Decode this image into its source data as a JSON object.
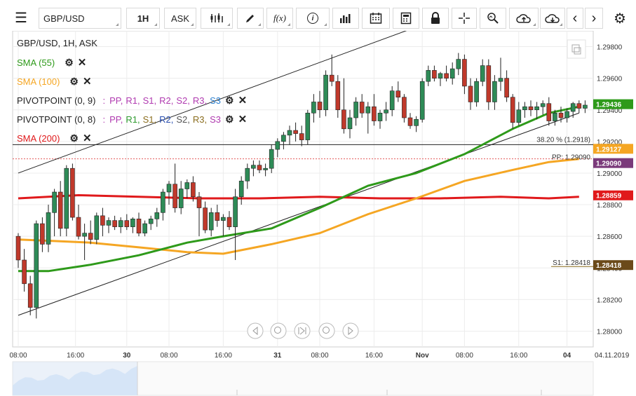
{
  "toolbar": {
    "symbol": "GBP/USD",
    "timeframe": "1H",
    "price_type": "ASK",
    "icons": [
      "menu-icon",
      "candles-icon",
      "draw-icon",
      "fx-icon",
      "info-icon",
      "bars-icon",
      "calendar-icon",
      "calculator-icon",
      "lock-icon",
      "crosshair-icon",
      "zoom-icon",
      "upload-icon",
      "download-icon",
      "prev-icon",
      "next-icon",
      "settings-icon"
    ],
    "fx_label": "f(x)"
  },
  "legend": {
    "title": "GBP/USD, 1H, ASK",
    "sma55": "SMA (55)",
    "sma100": "SMA (100)",
    "pivot1_label": "PIVOTPOINT (0, 9)",
    "pivot2_label": "PIVOTPOINT (0, 8)",
    "sma200": "SMA (200)",
    "pivot_sep": ":",
    "pivot_parts": [
      "PP,",
      "R1,",
      "S1,",
      "R2,",
      "S2,",
      "R3,",
      "S3"
    ],
    "pivot1_colors": [
      "#b03ab0",
      "#b03ab0",
      "#b03ab0",
      "#b03ab0",
      "#b03ab0",
      "#b03ab0",
      "#2a7fd0"
    ],
    "pivot2_colors": [
      "#b03ab0",
      "#2e9a2e",
      "#8a6d1e",
      "#2a4fb0",
      "#555555",
      "#8a6d1e",
      "#b03ab0"
    ]
  },
  "colors": {
    "up": "#2e8b57",
    "down": "#c0392b",
    "sma55": "#2e9a1a",
    "sma100": "#f5a623",
    "sma200": "#e0191b"
  },
  "chart_data": {
    "type": "candlestick",
    "ylim": [
      1.279,
      1.299
    ],
    "y_ticks": [
      "1.29800",
      "1.29600",
      "1.29400",
      "1.29200",
      "1.29000",
      "1.28800",
      "1.28600",
      "1.28400",
      "1.28200",
      "1.28000"
    ],
    "x_ticks": [
      "08:00",
      "16:00",
      "30",
      "08:00",
      "16:00",
      "31",
      "08:00",
      "16:00",
      "Nov",
      "08:00",
      "16:00",
      "04"
    ],
    "x_tick_index": [
      0,
      9.5,
      18,
      25,
      34,
      43,
      50,
      59,
      67,
      74,
      83,
      91
    ],
    "date_label": "04.11.2019",
    "candles": [
      [
        1.286,
        1.2862,
        1.284,
        1.2845
      ],
      [
        1.2845,
        1.2852,
        1.2825,
        1.283
      ],
      [
        1.283,
        1.2835,
        1.281,
        1.2815
      ],
      [
        1.2815,
        1.287,
        1.2808,
        1.2868
      ],
      [
        1.2868,
        1.2872,
        1.285,
        1.2855
      ],
      [
        1.2855,
        1.288,
        1.285,
        1.2875
      ],
      [
        1.2875,
        1.289,
        1.286,
        1.2888
      ],
      [
        1.2888,
        1.2895,
        1.286,
        1.2865
      ],
      [
        1.2865,
        1.2905,
        1.286,
        1.2903
      ],
      [
        1.2903,
        1.2906,
        1.287,
        1.2872
      ],
      [
        1.2872,
        1.288,
        1.2858,
        1.286
      ],
      [
        1.286,
        1.2868,
        1.2845,
        1.2862
      ],
      [
        1.2862,
        1.287,
        1.2855,
        1.2858
      ],
      [
        1.2858,
        1.2875,
        1.2855,
        1.2873
      ],
      [
        1.2873,
        1.2878,
        1.286,
        1.2867
      ],
      [
        1.2867,
        1.2872,
        1.2862,
        1.287
      ],
      [
        1.287,
        1.2873,
        1.2864,
        1.2866
      ],
      [
        1.2866,
        1.2872,
        1.2862,
        1.287
      ],
      [
        1.287,
        1.2874,
        1.2864,
        1.2866
      ],
      [
        1.2866,
        1.2872,
        1.2862,
        1.2871
      ],
      [
        1.2871,
        1.2875,
        1.286,
        1.2862
      ],
      [
        1.2862,
        1.287,
        1.286,
        1.2868
      ],
      [
        1.2868,
        1.2873,
        1.2864,
        1.2871
      ],
      [
        1.2871,
        1.2878,
        1.2866,
        1.2875
      ],
      [
        1.2875,
        1.289,
        1.287,
        1.2888
      ],
      [
        1.2888,
        1.2895,
        1.288,
        1.2893
      ],
      [
        1.2893,
        1.2906,
        1.2875,
        1.2878
      ],
      [
        1.2878,
        1.2895,
        1.2874,
        1.289
      ],
      [
        1.289,
        1.2896,
        1.2884,
        1.2894
      ],
      [
        1.2894,
        1.2898,
        1.2882,
        1.2885
      ],
      [
        1.2885,
        1.2888,
        1.286,
        1.2878
      ],
      [
        1.2878,
        1.2882,
        1.2862,
        1.2864
      ],
      [
        1.2864,
        1.2878,
        1.286,
        1.2875
      ],
      [
        1.2875,
        1.288,
        1.2866,
        1.287
      ],
      [
        1.287,
        1.2874,
        1.286,
        1.2872
      ],
      [
        1.2872,
        1.2876,
        1.2864,
        1.2866
      ],
      [
        1.2866,
        1.289,
        1.2845,
        1.2885
      ],
      [
        1.2885,
        1.2898,
        1.288,
        1.2895
      ],
      [
        1.2895,
        1.2906,
        1.289,
        1.2903
      ],
      [
        1.2903,
        1.2908,
        1.2898,
        1.2905
      ],
      [
        1.2905,
        1.2908,
        1.29,
        1.2902
      ],
      [
        1.2902,
        1.2906,
        1.2898,
        1.2903
      ],
      [
        1.2903,
        1.2918,
        1.29,
        1.2915
      ],
      [
        1.2915,
        1.2922,
        1.291,
        1.292
      ],
      [
        1.292,
        1.2926,
        1.2915,
        1.2924
      ],
      [
        1.2924,
        1.293,
        1.2918,
        1.2927
      ],
      [
        1.2927,
        1.2932,
        1.292,
        1.2925
      ],
      [
        1.2925,
        1.293,
        1.2917,
        1.2921
      ],
      [
        1.2921,
        1.294,
        1.2918,
        1.2938
      ],
      [
        1.2938,
        1.295,
        1.2932,
        1.2945
      ],
      [
        1.2945,
        1.2952,
        1.2935,
        1.294
      ],
      [
        1.294,
        1.2965,
        1.2936,
        1.2962
      ],
      [
        1.2962,
        1.2975,
        1.2955,
        1.2958
      ],
      [
        1.2958,
        1.2962,
        1.2935,
        1.294
      ],
      [
        1.294,
        1.296,
        1.2925,
        1.2928
      ],
      [
        1.2928,
        1.294,
        1.2922,
        1.2935
      ],
      [
        1.2935,
        1.2948,
        1.293,
        1.2945
      ],
      [
        1.2945,
        1.295,
        1.2935,
        1.2938
      ],
      [
        1.2938,
        1.2945,
        1.2925,
        1.2942
      ],
      [
        1.2942,
        1.295,
        1.293,
        1.2933
      ],
      [
        1.2933,
        1.294,
        1.2928,
        1.2938
      ],
      [
        1.2938,
        1.2945,
        1.2933,
        1.294
      ],
      [
        1.294,
        1.2955,
        1.2936,
        1.2952
      ],
      [
        1.2952,
        1.2958,
        1.2945,
        1.2948
      ],
      [
        1.2948,
        1.295,
        1.2932,
        1.2935
      ],
      [
        1.2935,
        1.2938,
        1.2928,
        1.293
      ],
      [
        1.293,
        1.2936,
        1.2926,
        1.2934
      ],
      [
        1.2934,
        1.296,
        1.2932,
        1.2958
      ],
      [
        1.2958,
        1.2968,
        1.2955,
        1.2965
      ],
      [
        1.2965,
        1.2968,
        1.2958,
        1.296
      ],
      [
        1.296,
        1.2964,
        1.2955,
        1.2963
      ],
      [
        1.2963,
        1.2968,
        1.2958,
        1.296
      ],
      [
        1.296,
        1.297,
        1.2956,
        1.2966
      ],
      [
        1.2966,
        1.2976,
        1.2962,
        1.2972
      ],
      [
        1.2972,
        1.2975,
        1.295,
        1.2955
      ],
      [
        1.2955,
        1.296,
        1.294,
        1.2945
      ],
      [
        1.2945,
        1.296,
        1.2942,
        1.2958
      ],
      [
        1.2958,
        1.2972,
        1.2955,
        1.2968
      ],
      [
        1.2968,
        1.2972,
        1.294,
        1.2945
      ],
      [
        1.2945,
        1.2962,
        1.294,
        1.2958
      ],
      [
        1.2958,
        1.2973,
        1.2952,
        1.296
      ],
      [
        1.296,
        1.2965,
        1.2945,
        1.2948
      ],
      [
        1.2948,
        1.295,
        1.2928,
        1.2932
      ],
      [
        1.2932,
        1.2945,
        1.293,
        1.294
      ],
      [
        1.294,
        1.2945,
        1.2935,
        1.2942
      ],
      [
        1.2942,
        1.2946,
        1.2936,
        1.294
      ],
      [
        1.294,
        1.2945,
        1.2934,
        1.2942
      ],
      [
        1.2942,
        1.2946,
        1.2937,
        1.2944
      ],
      [
        1.2944,
        1.2948,
        1.293,
        1.2933
      ],
      [
        1.2933,
        1.294,
        1.293,
        1.2938
      ],
      [
        1.2938,
        1.2942,
        1.2932,
        1.2935
      ],
      [
        1.2935,
        1.2941,
        1.2932,
        1.2939
      ],
      [
        1.2939,
        1.2945,
        1.2935,
        1.2944
      ],
      [
        1.2944,
        1.2946,
        1.2938,
        1.2941
      ],
      [
        1.2941,
        1.2946,
        1.2938,
        1.2943
      ]
    ],
    "sma55": [
      [
        0,
        1.2838
      ],
      [
        5,
        1.2838
      ],
      [
        12,
        1.2842
      ],
      [
        20,
        1.2848
      ],
      [
        28,
        1.2856
      ],
      [
        34,
        1.286
      ],
      [
        42,
        1.2865
      ],
      [
        50,
        1.2878
      ],
      [
        58,
        1.2892
      ],
      [
        66,
        1.29
      ],
      [
        74,
        1.2912
      ],
      [
        82,
        1.2928
      ],
      [
        88,
        1.2938
      ],
      [
        93,
        1.2942
      ]
    ],
    "sma100": [
      [
        0,
        1.2858
      ],
      [
        6,
        1.2857
      ],
      [
        12,
        1.2856
      ],
      [
        20,
        1.2853
      ],
      [
        28,
        1.285
      ],
      [
        34,
        1.2849
      ],
      [
        42,
        1.2855
      ],
      [
        50,
        1.2862
      ],
      [
        58,
        1.2874
      ],
      [
        66,
        1.2884
      ],
      [
        74,
        1.2895
      ],
      [
        82,
        1.2902
      ],
      [
        88,
        1.2907
      ],
      [
        93,
        1.2909
      ]
    ],
    "sma200": [
      [
        0,
        1.2884
      ],
      [
        10,
        1.2886
      ],
      [
        20,
        1.2885
      ],
      [
        30,
        1.2884
      ],
      [
        40,
        1.2884
      ],
      [
        50,
        1.2885
      ],
      [
        60,
        1.2884
      ],
      [
        70,
        1.2884
      ],
      [
        80,
        1.2885
      ],
      [
        88,
        1.2884
      ],
      [
        93,
        1.2885
      ]
    ],
    "channel_upper": [
      [
        0,
        1.29
      ],
      [
        70,
        1.2998
      ]
    ],
    "channel_lower": [
      [
        0,
        1.281
      ],
      [
        93,
        1.2938
      ]
    ],
    "fib_level": {
      "label": "38.20 % (1.2918)",
      "value": 1.2918
    },
    "pp_level": {
      "label": "PP: 1.29090",
      "value": 1.2909
    },
    "s1_level": {
      "label": "S1: 1.28418",
      "value": 1.28418
    },
    "price_tags": [
      {
        "label": "1.29436",
        "value": 1.29436,
        "color": "#2e9a1a"
      },
      {
        "label": "1.29127",
        "value": 1.29127,
        "color": "#f5a623"
      },
      {
        "label": "1.29090",
        "value": 1.2909,
        "color": "#7a3a7a"
      },
      {
        "label": "1.28859",
        "value": 1.28859,
        "color": "#e0191b"
      },
      {
        "label": "1.28418",
        "value": 1.28418,
        "color": "#6b4a1a"
      }
    ]
  }
}
